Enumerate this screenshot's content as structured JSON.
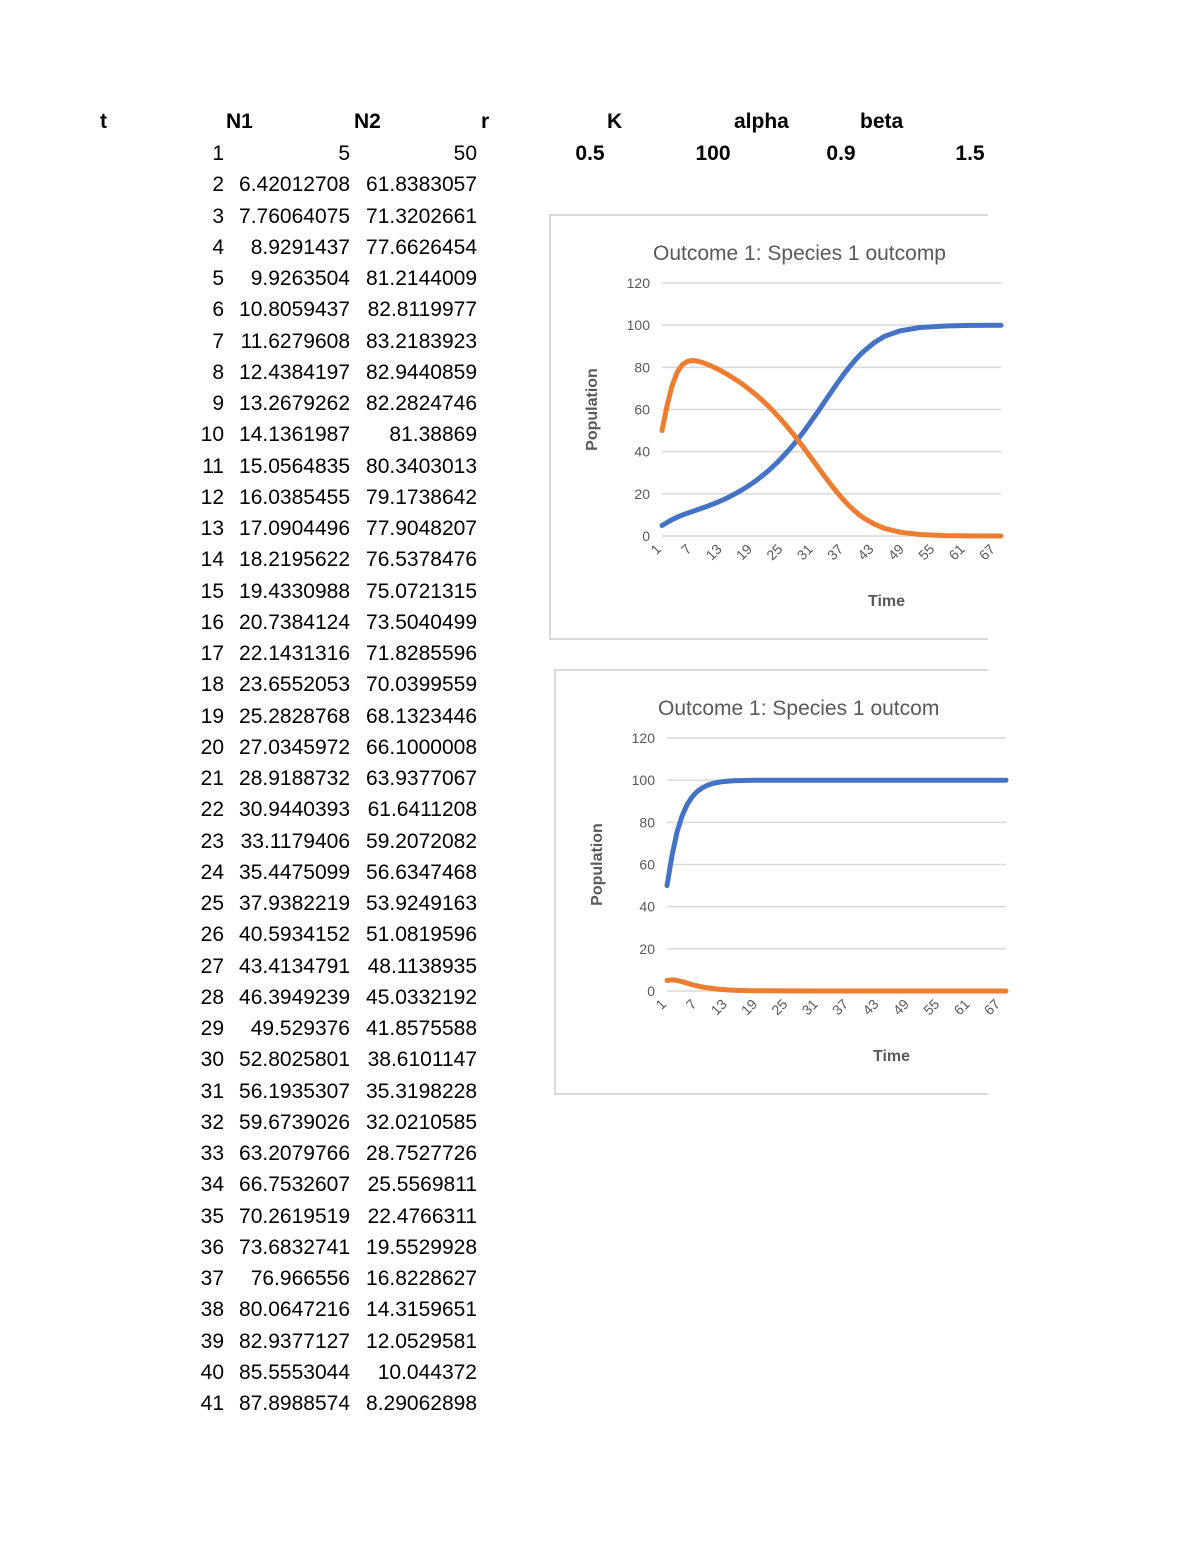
{
  "sheet": {
    "headers": {
      "t": "t",
      "n1": "N1",
      "n2": "N2",
      "r": "r",
      "k": "K",
      "alpha": "alpha",
      "beta": "beta"
    },
    "params": {
      "r": "0.5",
      "k": "100",
      "alpha": "0.9",
      "beta": "1.5"
    },
    "rows": [
      [
        "1",
        "5",
        "50"
      ],
      [
        "2",
        "6.42012708",
        "61.8383057"
      ],
      [
        "3",
        "7.76064075",
        "71.3202661"
      ],
      [
        "4",
        "8.9291437",
        "77.6626454"
      ],
      [
        "5",
        "9.9263504",
        "81.2144009"
      ],
      [
        "6",
        "10.8059437",
        "82.8119977"
      ],
      [
        "7",
        "11.6279608",
        "83.2183923"
      ],
      [
        "8",
        "12.4384197",
        "82.9440859"
      ],
      [
        "9",
        "13.2679262",
        "82.2824746"
      ],
      [
        "10",
        "14.1361987",
        "81.38869"
      ],
      [
        "11",
        "15.0564835",
        "80.3403013"
      ],
      [
        "12",
        "16.0385455",
        "79.1738642"
      ],
      [
        "13",
        "17.0904496",
        "77.9048207"
      ],
      [
        "14",
        "18.2195622",
        "76.5378476"
      ],
      [
        "15",
        "19.4330988",
        "75.0721315"
      ],
      [
        "16",
        "20.7384124",
        "73.5040499"
      ],
      [
        "17",
        "22.1431316",
        "71.8285596"
      ],
      [
        "18",
        "23.6552053",
        "70.0399559"
      ],
      [
        "19",
        "25.2828768",
        "68.1323446"
      ],
      [
        "20",
        "27.0345972",
        "66.1000008"
      ],
      [
        "21",
        "28.9188732",
        "63.9377067"
      ],
      [
        "22",
        "30.9440393",
        "61.6411208"
      ],
      [
        "23",
        "33.1179406",
        "59.2072082"
      ],
      [
        "24",
        "35.4475099",
        "56.6347468"
      ],
      [
        "25",
        "37.9382219",
        "53.9249163"
      ],
      [
        "26",
        "40.5934152",
        "51.0819596"
      ],
      [
        "27",
        "43.4134791",
        "48.1138935"
      ],
      [
        "28",
        "46.3949239",
        "45.0332192"
      ],
      [
        "29",
        "49.529376",
        "41.8575588"
      ],
      [
        "30",
        "52.8025801",
        "38.6101147"
      ],
      [
        "31",
        "56.1935307",
        "35.3198228"
      ],
      [
        "32",
        "59.6739026",
        "32.0210585"
      ],
      [
        "33",
        "63.2079766",
        "28.7527726"
      ],
      [
        "34",
        "66.7532607",
        "25.5569811"
      ],
      [
        "35",
        "70.2619519",
        "22.4766311"
      ],
      [
        "36",
        "73.6832741",
        "19.5529928"
      ],
      [
        "37",
        "76.966556",
        "16.8228627"
      ],
      [
        "38",
        "80.0647216",
        "14.3159651"
      ],
      [
        "39",
        "82.9377127",
        "12.0529581"
      ],
      [
        "40",
        "85.5553044",
        "10.044372"
      ],
      [
        "41",
        "87.8988574",
        "8.29062898"
      ]
    ]
  },
  "chart_data": [
    {
      "type": "line",
      "title": "Outcome 1: Species 1 outcomp",
      "xlabel": "Time",
      "ylabel": "Population",
      "ylim": [
        0,
        120
      ],
      "yticks": [
        0,
        20,
        40,
        60,
        80,
        100,
        120
      ],
      "xlim": [
        1,
        68
      ],
      "x_tick_labels": [
        "1",
        "7",
        "13",
        "19",
        "25",
        "31",
        "37",
        "43",
        "49",
        "55",
        "61",
        "67"
      ],
      "grid": true,
      "series": [
        {
          "color": "#4472c4",
          "x": [
            1,
            2,
            3,
            4,
            5,
            6,
            7,
            8,
            9,
            10,
            11,
            12,
            13,
            14,
            15,
            16,
            17,
            18,
            19,
            20,
            21,
            22,
            23,
            24,
            25,
            26,
            27,
            28,
            29,
            30,
            31,
            32,
            33,
            34,
            35,
            36,
            37,
            38,
            39,
            40,
            41,
            43,
            45,
            48,
            52,
            57,
            62,
            68
          ],
          "values": [
            5,
            6.42,
            7.76,
            8.93,
            9.93,
            10.81,
            11.63,
            12.44,
            13.27,
            14.14,
            15.06,
            16.04,
            17.09,
            18.22,
            19.43,
            20.74,
            22.14,
            23.66,
            25.28,
            27.03,
            28.92,
            30.94,
            33.12,
            35.45,
            37.94,
            40.59,
            43.41,
            46.39,
            49.53,
            52.8,
            56.19,
            59.67,
            63.21,
            66.75,
            70.26,
            73.68,
            76.97,
            80.06,
            82.94,
            85.56,
            87.9,
            91.8,
            94.7,
            97.3,
            98.9,
            99.6,
            99.9,
            100
          ]
        },
        {
          "color": "#ed7d31",
          "x": [
            1,
            2,
            3,
            4,
            5,
            6,
            7,
            8,
            9,
            10,
            11,
            12,
            13,
            14,
            15,
            16,
            17,
            18,
            19,
            20,
            21,
            22,
            23,
            24,
            25,
            26,
            27,
            28,
            29,
            30,
            31,
            32,
            33,
            34,
            35,
            36,
            37,
            38,
            39,
            40,
            41,
            43,
            45,
            48,
            52,
            57,
            62,
            68
          ],
          "values": [
            50,
            61.84,
            71.32,
            77.66,
            81.21,
            82.81,
            83.22,
            82.94,
            82.28,
            81.39,
            80.34,
            79.17,
            77.9,
            76.54,
            75.07,
            73.5,
            71.83,
            70.04,
            68.13,
            66.1,
            63.94,
            61.64,
            59.21,
            56.63,
            53.92,
            51.08,
            48.11,
            45.03,
            41.86,
            38.61,
            35.32,
            32.02,
            28.75,
            25.56,
            22.48,
            19.55,
            16.82,
            14.32,
            12.05,
            10.04,
            8.29,
            5.6,
            3.6,
            1.8,
            0.7,
            0.2,
            0.05,
            0
          ]
        }
      ]
    },
    {
      "type": "line",
      "title": "Outcome 1: Species 1 outcom",
      "xlabel": "Time",
      "ylabel": "Population",
      "ylim": [
        0,
        120
      ],
      "yticks": [
        0,
        20,
        40,
        60,
        80,
        100,
        120
      ],
      "xlim": [
        1,
        68
      ],
      "x_tick_labels": [
        "1",
        "7",
        "13",
        "19",
        "25",
        "31",
        "37",
        "43",
        "49",
        "55",
        "61",
        "67"
      ],
      "grid": true,
      "series": [
        {
          "color": "#4472c4",
          "x": [
            1,
            2,
            3,
            4,
            5,
            6,
            7,
            8,
            9,
            10,
            11,
            12,
            14,
            16,
            18,
            20,
            25,
            30,
            40,
            50,
            68
          ],
          "values": [
            50,
            64.5,
            75.5,
            83.2,
            88.5,
            92.2,
            94.7,
            96.4,
            97.6,
            98.4,
            98.9,
            99.3,
            99.7,
            99.85,
            99.93,
            99.97,
            100,
            100,
            100,
            100,
            100
          ]
        },
        {
          "color": "#ed7d31",
          "x": [
            1,
            2,
            3,
            4,
            5,
            6,
            7,
            8,
            9,
            10,
            11,
            12,
            14,
            16,
            18,
            20,
            25,
            30,
            40,
            50,
            68
          ],
          "values": [
            5,
            5.3,
            5.0,
            4.4,
            3.7,
            3.0,
            2.4,
            1.9,
            1.5,
            1.2,
            0.9,
            0.7,
            0.4,
            0.25,
            0.15,
            0.1,
            0.03,
            0.01,
            0,
            0,
            0
          ]
        }
      ]
    }
  ]
}
